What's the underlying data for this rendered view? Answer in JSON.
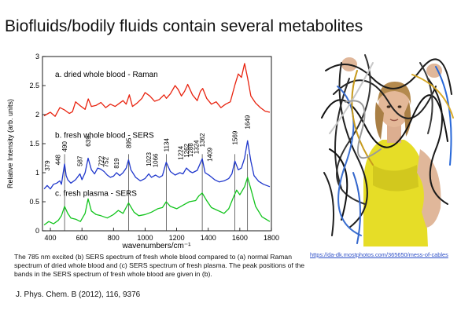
{
  "slide": {
    "title": "Biofluids/bodily fluids contain several metabolites",
    "caption": "The 785 nm excited (b) SERS spectrum of fresh whole blood compared to (a) normal Raman spectrum of dried whole blood and (c) SERS spectrum of fresh plasma. The peak positions of the bands in the SERS spectrum of fresh whole blood are given in (b).",
    "reference": "J. Phys. Chem. B (2012), 116, 9376",
    "photo_link": "https://da-dk.mostphotos.com/365650/mess-of-cables"
  },
  "chart_data": {
    "type": "line",
    "xlabel": "wavenumbers/cm⁻¹",
    "ylabel": "Relative Intensity (arb. units)",
    "xlim": [
      350,
      1800
    ],
    "ylim": [
      0,
      3
    ],
    "x_ticks": [
      "400",
      "600",
      "800",
      "1000",
      "1200",
      "1400",
      "1600",
      "1800"
    ],
    "y_ticks": [
      "0",
      "0.5",
      "1",
      "1.5",
      "2",
      "2.5",
      "3"
    ],
    "series": [
      {
        "name": "a. dried whole blood - Raman",
        "color": "#e8220e",
        "x": [
          360,
          400,
          430,
          460,
          490,
          520,
          540,
          560,
          590,
          620,
          640,
          660,
          690,
          720,
          750,
          780,
          810,
          840,
          860,
          880,
          900,
          920,
          950,
          980,
          1000,
          1030,
          1060,
          1090,
          1120,
          1135,
          1160,
          1190,
          1210,
          1230,
          1250,
          1270,
          1300,
          1330,
          1350,
          1365,
          1390,
          1420,
          1450,
          1480,
          1510,
          1540,
          1570,
          1590,
          1610,
          1630,
          1650,
          1670,
          1700,
          1730,
          1760,
          1790
        ],
        "y": [
          1.98,
          2.04,
          1.97,
          2.12,
          2.08,
          2.02,
          2.05,
          2.22,
          2.15,
          2.09,
          2.27,
          2.14,
          2.16,
          2.21,
          2.12,
          2.18,
          2.14,
          2.2,
          2.24,
          2.18,
          2.34,
          2.14,
          2.2,
          2.28,
          2.38,
          2.32,
          2.23,
          2.26,
          2.34,
          2.28,
          2.36,
          2.5,
          2.43,
          2.32,
          2.4,
          2.52,
          2.34,
          2.24,
          2.4,
          2.45,
          2.28,
          2.18,
          2.22,
          2.12,
          2.18,
          2.22,
          2.52,
          2.7,
          2.64,
          2.88,
          2.62,
          2.32,
          2.2,
          2.12,
          2.06,
          2.04
        ]
      },
      {
        "name": "b. fresh whole blood - SERS",
        "color": "#1f37cc",
        "x": [
          360,
          380,
          400,
          420,
          440,
          460,
          470,
          480,
          490,
          500,
          510,
          530,
          560,
          587,
          600,
          620,
          639,
          660,
          680,
          700,
          720,
          740,
          760,
          780,
          800,
          819,
          840,
          860,
          880,
          895,
          910,
          940,
          970,
          1000,
          1023,
          1040,
          1066,
          1090,
          1110,
          1134,
          1160,
          1190,
          1220,
          1240,
          1262,
          1285,
          1300,
          1330,
          1362,
          1380,
          1409,
          1440,
          1470,
          1500,
          1530,
          1550,
          1569,
          1590,
          1610,
          1630,
          1649,
          1670,
          1690,
          1720,
          1750,
          1790
        ],
        "y": [
          0.72,
          0.78,
          0.72,
          0.8,
          0.82,
          0.86,
          0.8,
          0.98,
          1.15,
          0.95,
          0.88,
          0.82,
          0.88,
          0.98,
          0.88,
          1.0,
          1.25,
          1.05,
          0.98,
          1.08,
          1.06,
          1.02,
          0.96,
          0.92,
          0.94,
          1.0,
          0.95,
          1.0,
          1.08,
          1.22,
          1.05,
          0.92,
          0.86,
          0.9,
          0.98,
          0.92,
          0.96,
          0.92,
          0.95,
          1.18,
          1.02,
          0.96,
          1.0,
          0.98,
          1.08,
          1.02,
          1.0,
          1.04,
          1.24,
          1.0,
          0.95,
          0.88,
          0.84,
          0.86,
          0.9,
          0.98,
          1.2,
          1.05,
          1.08,
          1.25,
          1.55,
          1.2,
          0.95,
          0.85,
          0.8,
          0.76
        ]
      },
      {
        "name": "c. fresh plasma - SERS",
        "color": "#12c41d",
        "x": [
          360,
          390,
          420,
          450,
          470,
          490,
          510,
          530,
          560,
          590,
          620,
          639,
          660,
          690,
          720,
          760,
          800,
          830,
          860,
          895,
          930,
          960,
          1000,
          1040,
          1080,
          1110,
          1134,
          1160,
          1200,
          1240,
          1280,
          1320,
          1340,
          1362,
          1390,
          1420,
          1460,
          1500,
          1530,
          1560,
          1580,
          1600,
          1630,
          1649,
          1670,
          1700,
          1740,
          1790
        ],
        "y": [
          0.1,
          0.16,
          0.12,
          0.18,
          0.26,
          0.42,
          0.3,
          0.22,
          0.2,
          0.16,
          0.3,
          0.55,
          0.34,
          0.28,
          0.26,
          0.22,
          0.28,
          0.35,
          0.3,
          0.48,
          0.32,
          0.26,
          0.28,
          0.32,
          0.38,
          0.4,
          0.5,
          0.42,
          0.38,
          0.44,
          0.5,
          0.52,
          0.6,
          0.65,
          0.52,
          0.4,
          0.35,
          0.3,
          0.38,
          0.58,
          0.7,
          0.62,
          0.76,
          0.92,
          0.72,
          0.42,
          0.24,
          0.16
        ]
      }
    ],
    "series_label_positions_y": [
      2.65,
      1.6,
      0.6
    ],
    "peak_labels": [
      "379",
      "448",
      "490",
      "587",
      "639",
      "722",
      "752",
      "819",
      "895",
      "1023",
      "1066",
      "1134",
      "1224",
      "1262",
      "1288",
      "1324",
      "1362",
      "1409",
      "1569",
      "1649"
    ],
    "peak_x": [
      379,
      448,
      490,
      587,
      639,
      722,
      752,
      819,
      895,
      1023,
      1066,
      1134,
      1224,
      1262,
      1288,
      1324,
      1362,
      1409,
      1569,
      1649
    ],
    "peak_label_y": [
      1.03,
      1.13,
      1.36,
      1.11,
      1.45,
      1.11,
      1.09,
      1.07,
      1.42,
      1.11,
      1.09,
      1.36,
      1.22,
      1.26,
      1.27,
      1.32,
      1.44,
      1.19,
      1.48,
      1.75
    ],
    "vertical_lines_x": [
      490,
      895,
      1134,
      1362,
      1569,
      1649
    ],
    "grid": false,
    "legend": "none (series labeled inline)"
  }
}
